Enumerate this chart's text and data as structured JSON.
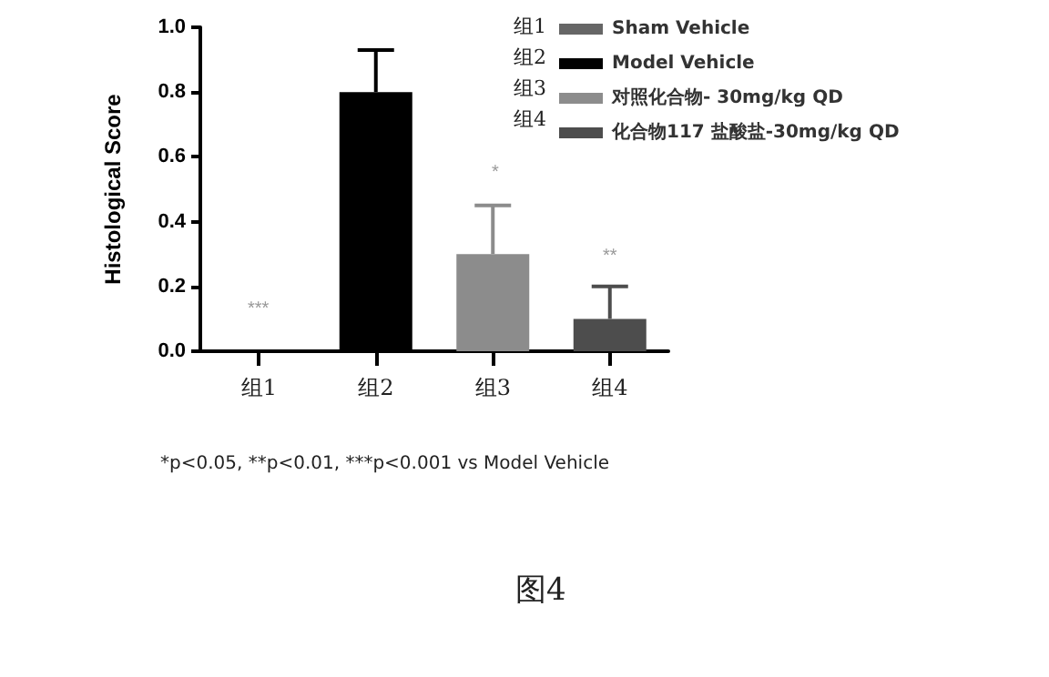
{
  "chart_data": {
    "type": "bar",
    "ylabel": "Histological Score",
    "categories": [
      "组1",
      "组2",
      "组3",
      "组4"
    ],
    "series": [
      {
        "name": "Sham Vehicle",
        "color": "#666666",
        "values": [
          0,
          null,
          null,
          null
        ],
        "errors": [
          null,
          null,
          null,
          null
        ]
      },
      {
        "name": "Model Vehicle",
        "color": "#000000",
        "values": [
          null,
          0.8,
          null,
          null
        ],
        "errors": [
          null,
          [
            0.8,
            0.93
          ],
          null,
          null
        ]
      },
      {
        "name": "对照化合物- 30mg/kg QD",
        "color": "#8c8c8c",
        "values": [
          null,
          null,
          0.3,
          null
        ],
        "errors": [
          null,
          null,
          [
            0.3,
            0.45
          ],
          null
        ]
      },
      {
        "name": "化合物117 盐酸盐-30mg/kg QD",
        "color": "#4d4d4d",
        "values": [
          null,
          null,
          null,
          0.1
        ],
        "errors": [
          null,
          null,
          null,
          [
            0.1,
            0.2
          ]
        ]
      }
    ],
    "ylim": [
      0,
      1
    ],
    "yticks": [
      {
        "value": 0,
        "label": "0.0"
      },
      {
        "value": 0.2,
        "label": "0.2"
      },
      {
        "value": 0.4,
        "label": "0.4"
      },
      {
        "value": 0.6,
        "label": "0.6"
      },
      {
        "value": 0.8,
        "label": "0.8"
      },
      {
        "value": 1,
        "label": "1.0"
      }
    ],
    "grid": false,
    "legend": "top right",
    "annotations": [
      "***",
      "*",
      "**",
      "*p<0.05, **p<0.01, ***p<0.001 vs Model Vehicle",
      "图4"
    ]
  }
}
